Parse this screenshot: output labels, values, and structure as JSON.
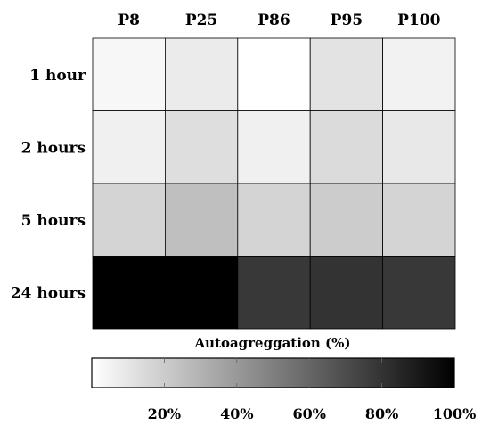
{
  "chart_data": {
    "type": "heatmap",
    "title": "",
    "columns": [
      "P8",
      "P25",
      "P86",
      "P95",
      "P100"
    ],
    "rows": [
      "1 hour",
      "2 hours",
      "5 hours",
      "24 hours"
    ],
    "values": [
      [
        3,
        8,
        0,
        11,
        5
      ],
      [
        6,
        13,
        6,
        14,
        9
      ],
      [
        17,
        25,
        17,
        20,
        17
      ],
      [
        100,
        100,
        78,
        80,
        78
      ]
    ],
    "colorbar": {
      "label": "Autoagreggation (%)",
      "min": 0,
      "max": 100,
      "ticks": [
        20,
        40,
        60,
        80,
        100
      ],
      "tick_labels": [
        "20%",
        "40%",
        "60%",
        "80%",
        "100%"
      ],
      "low_color": "#ffffff",
      "high_color": "#000000"
    },
    "grid": true
  }
}
